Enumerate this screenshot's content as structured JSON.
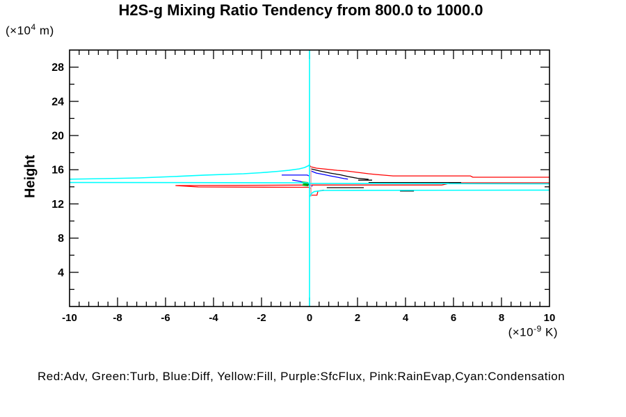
{
  "title": "H2S-g Mixing Ratio Tendency from 800.0 to 1000.0",
  "y_axis": {
    "label": "Height",
    "unit_prefix": "(×10",
    "unit_sup": "4",
    "unit_suffix": " m)"
  },
  "x_axis": {
    "unit_prefix": "(×10",
    "unit_sup": "-9",
    "unit_suffix": " K)"
  },
  "legend_text": "Red:Adv, Green:Turb, Blue:Diff, Yellow:Fill, Purple:SfcFlux, Pink:RainEvap,Cyan:Condensation",
  "colors": {
    "adv": "#ff0000",
    "turb": "#00aa00",
    "diff": "#0000ff",
    "fill": "#ffff00",
    "sfcflux": "#aa00aa",
    "rainevap": "#ffaaaa",
    "condensation": "#00ffff",
    "frame": "#000000",
    "background": "#ffffff"
  },
  "chart_data": {
    "type": "line",
    "title": "H2S-g Mixing Ratio Tendency from 800.0 to 1000.0",
    "xlabel": "(×10^-9 K)",
    "ylabel": "Height (×10^4 m)",
    "xlim": [
      -10,
      10
    ],
    "ylim": [
      0,
      30
    ],
    "grid": false,
    "x_major_ticks": [
      -10,
      -8,
      -6,
      -4,
      -2,
      0,
      2,
      4,
      6,
      8,
      10
    ],
    "x_tick_labels": [
      "-10",
      "-8",
      "-6",
      "-4",
      "-2",
      "0",
      "2",
      "4",
      "6",
      "8",
      "10"
    ],
    "x_minor_step": 0.4,
    "y_major_ticks": [
      4,
      8,
      12,
      16,
      20,
      24,
      28
    ],
    "y_tick_labels": [
      "4",
      "8",
      "12",
      "16",
      "20",
      "24",
      "28"
    ],
    "y_minor_step": 2,
    "series": [
      {
        "name": "adv",
        "color": "#ff0000",
        "width": 1.3,
        "segments": [
          [
            [
              0,
              16.5
            ],
            [
              0.06,
              16.34
            ],
            [
              0.29,
              16.18
            ],
            [
              0.72,
              16.06
            ],
            [
              1.16,
              15.93
            ],
            [
              1.54,
              15.85
            ],
            [
              2.0,
              15.69
            ],
            [
              2.46,
              15.53
            ],
            [
              2.75,
              15.45
            ],
            [
              3.48,
              15.28
            ],
            [
              6.7,
              15.28
            ],
            [
              6.81,
              15.12
            ],
            [
              10.3,
              15.12
            ],
            [
              10.3,
              14.47
            ],
            [
              5.94,
              14.47
            ],
            [
              5.51,
              14.21
            ],
            [
              0.15,
              14.21
            ],
            [
              -5.57,
              14.15
            ],
            [
              -4.64,
              13.98
            ],
            [
              -0.03,
              13.94
            ],
            [
              0.06,
              13.8
            ],
            [
              0.06,
              13.02
            ],
            [
              0.31,
              13.02
            ],
            [
              0.35,
              13.5
            ],
            [
              0.6,
              13.62
            ]
          ]
        ]
      },
      {
        "name": "black-unlabeled",
        "color": "#000000",
        "width": 1.3,
        "segments": [
          [
            [
              0.06,
              16.1
            ],
            [
              0.43,
              15.85
            ],
            [
              0.87,
              15.6
            ],
            [
              1.3,
              15.4
            ],
            [
              1.6,
              15.2
            ],
            [
              2.0,
              15.0
            ],
            [
              2.46,
              14.88
            ]
          ],
          [
            [
              2.03,
              14.78
            ],
            [
              2.61,
              14.78
            ]
          ],
          [
            [
              2.46,
              14.5
            ],
            [
              6.32,
              14.5
            ]
          ],
          [
            [
              0.72,
              13.9
            ],
            [
              2.26,
              13.9
            ]
          ],
          [
            [
              3.77,
              13.5
            ],
            [
              4.35,
              13.5
            ]
          ]
        ]
      },
      {
        "name": "diff",
        "color": "#0000ff",
        "width": 1.3,
        "segments": [
          [
            [
              0.06,
              15.85
            ],
            [
              0.29,
              15.6
            ],
            [
              0.58,
              15.45
            ],
            [
              0.87,
              15.28
            ],
            [
              1.16,
              15.12
            ],
            [
              1.45,
              14.96
            ],
            [
              1.6,
              14.9
            ]
          ],
          [
            [
              -1.16,
              15.37
            ],
            [
              -0.09,
              15.37
            ],
            [
              -0.03,
              15.28
            ]
          ],
          [
            [
              -0.72,
              14.8
            ],
            [
              -0.38,
              14.63
            ],
            [
              -0.17,
              14.43
            ],
            [
              -0.06,
              14.27
            ],
            [
              0.06,
              14.17
            ],
            [
              0.12,
              14.05
            ]
          ]
        ]
      },
      {
        "name": "turb",
        "color": "#00aa00",
        "width": 1.8,
        "segments": [
          [
            [
              -0.32,
              14.55
            ],
            [
              -0.08,
              14.49
            ],
            [
              -0.26,
              14.41
            ],
            [
              -0.05,
              14.33
            ],
            [
              -0.28,
              14.21
            ],
            [
              -0.05,
              14.13
            ]
          ]
        ]
      },
      {
        "name": "rainevap",
        "color": "#ffaaaa",
        "width": 1.5,
        "segments": [
          [
            [
              0.06,
              16.35
            ],
            [
              0.06,
              12.85
            ]
          ]
        ]
      },
      {
        "name": "condensation",
        "color": "#00ffff",
        "width": 1.6,
        "segments": [
          [
            [
              0,
              16.6
            ],
            [
              -0.03,
              16.5
            ],
            [
              -0.2,
              16.26
            ],
            [
              -0.43,
              16.1
            ],
            [
              -0.87,
              15.93
            ],
            [
              -1.3,
              15.81
            ],
            [
              -2.03,
              15.65
            ],
            [
              -2.75,
              15.53
            ],
            [
              -4.35,
              15.37
            ],
            [
              -5.65,
              15.2
            ],
            [
              -7.1,
              15.04
            ],
            [
              -8.55,
              14.96
            ],
            [
              -10.3,
              14.88
            ],
            [
              -10.3,
              14.51
            ],
            [
              -0.14,
              14.47
            ],
            [
              0.03,
              14.41
            ],
            [
              10.3,
              14.35
            ],
            [
              10.3,
              13.62
            ],
            [
              0.58,
              13.58
            ],
            [
              0.2,
              13.45
            ],
            [
              0.09,
              13.25
            ],
            [
              0.04,
              13.0
            ],
            [
              0,
              12.85
            ]
          ]
        ]
      },
      {
        "name": "zero-reference",
        "color": "#00ffff",
        "width": 1.6,
        "segments": [
          [
            [
              0,
              0
            ],
            [
              0,
              30
            ]
          ]
        ]
      }
    ]
  }
}
